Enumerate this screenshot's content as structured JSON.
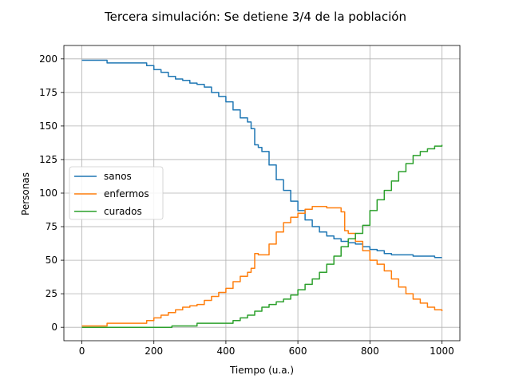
{
  "chart_data": {
    "type": "line",
    "title": "Tercera simulación: Se detiene 3/4 de la población",
    "xlabel": "Tiempo (u.a.)",
    "ylabel": "Personas",
    "xlim": [
      -50,
      1050
    ],
    "ylim": [
      -10,
      210
    ],
    "xticks": [
      0,
      200,
      400,
      600,
      800,
      1000
    ],
    "yticks": [
      0,
      25,
      50,
      75,
      100,
      125,
      150,
      175,
      200
    ],
    "grid": true,
    "legend": "center-left",
    "series": [
      {
        "name": "sanos",
        "color": "#1f77b4",
        "x": [
          0,
          70,
          150,
          180,
          200,
          220,
          240,
          260,
          280,
          300,
          320,
          340,
          360,
          380,
          400,
          420,
          440,
          460,
          470,
          480,
          490,
          500,
          520,
          540,
          560,
          580,
          600,
          620,
          640,
          660,
          680,
          700,
          720,
          740,
          760,
          780,
          800,
          820,
          840,
          860,
          880,
          900,
          920,
          940,
          960,
          980,
          1000
        ],
        "y": [
          199,
          197,
          197,
          195,
          192,
          190,
          187,
          185,
          184,
          182,
          181,
          179,
          175,
          172,
          168,
          162,
          156,
          153,
          148,
          136,
          134,
          131,
          121,
          110,
          102,
          94,
          87,
          80,
          75,
          71,
          68,
          66,
          64,
          63,
          62,
          60,
          58,
          57,
          55,
          54,
          54,
          54,
          53,
          53,
          53,
          52,
          52
        ]
      },
      {
        "name": "enfermos",
        "color": "#ff7f0e",
        "x": [
          0,
          70,
          150,
          180,
          200,
          220,
          240,
          260,
          280,
          300,
          320,
          340,
          360,
          380,
          400,
          420,
          440,
          460,
          470,
          480,
          490,
          500,
          520,
          540,
          560,
          580,
          600,
          620,
          640,
          660,
          680,
          700,
          720,
          730,
          740,
          760,
          780,
          800,
          820,
          840,
          860,
          880,
          900,
          920,
          940,
          960,
          980,
          1000
        ],
        "y": [
          1,
          3,
          3,
          5,
          7,
          9,
          11,
          13,
          15,
          16,
          17,
          20,
          23,
          26,
          29,
          34,
          38,
          41,
          44,
          55,
          54,
          54,
          62,
          71,
          78,
          82,
          85,
          88,
          90,
          90,
          89,
          89,
          86,
          72,
          70,
          64,
          57,
          50,
          47,
          42,
          36,
          30,
          25,
          21,
          18,
          15,
          13,
          12
        ]
      },
      {
        "name": "curados",
        "color": "#2ca02c",
        "x": [
          0,
          100,
          200,
          240,
          250,
          300,
          320,
          340,
          360,
          380,
          400,
          420,
          440,
          460,
          480,
          500,
          520,
          540,
          560,
          580,
          600,
          620,
          640,
          660,
          680,
          700,
          720,
          740,
          760,
          780,
          800,
          820,
          840,
          860,
          880,
          900,
          920,
          940,
          960,
          980,
          1000
        ],
        "y": [
          0,
          0,
          0,
          0,
          1,
          1,
          3,
          3,
          3,
          3,
          3,
          5,
          7,
          9,
          12,
          15,
          17,
          19,
          21,
          24,
          28,
          32,
          36,
          41,
          47,
          53,
          60,
          66,
          70,
          76,
          87,
          95,
          102,
          109,
          116,
          122,
          128,
          131,
          133,
          135,
          136
        ]
      }
    ]
  }
}
